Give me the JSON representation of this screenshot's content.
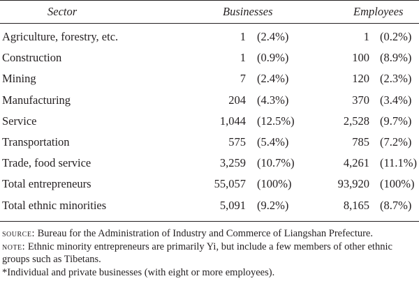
{
  "table": {
    "headers": {
      "sector": "Sector",
      "businesses": "Businesses",
      "employees": "Employees"
    },
    "rows": [
      {
        "sector": "Agriculture, forestry, etc.",
        "businesses": "1",
        "businesses_pct": "(2.4%)",
        "employees": "1",
        "employees_pct": "(0.2%)"
      },
      {
        "sector": "Construction",
        "businesses": "1",
        "businesses_pct": "(0.9%)",
        "employees": "100",
        "employees_pct": "(8.9%)"
      },
      {
        "sector": "Mining",
        "businesses": "7",
        "businesses_pct": "(2.4%)",
        "employees": "120",
        "employees_pct": "(2.3%)"
      },
      {
        "sector": "Manufacturing",
        "businesses": "204",
        "businesses_pct": "(4.3%)",
        "employees": "370",
        "employees_pct": "(3.4%)"
      },
      {
        "sector": "Service",
        "businesses": "1,044",
        "businesses_pct": "(12.5%)",
        "employees": "2,528",
        "employees_pct": "(9.7%)"
      },
      {
        "sector": "Transportation",
        "businesses": "575",
        "businesses_pct": "(5.4%)",
        "employees": "785",
        "employees_pct": "(7.2%)"
      },
      {
        "sector": "Trade, food service",
        "businesses": "3,259",
        "businesses_pct": "(10.7%)",
        "employees": "4,261",
        "employees_pct": "(11.1%)"
      },
      {
        "sector": "Total entrepreneurs",
        "businesses": "55,057",
        "businesses_pct": "(100%)",
        "employees": "93,920",
        "employees_pct": "(100%)"
      },
      {
        "sector": "Total ethnic minorities",
        "businesses": "5,091",
        "businesses_pct": "(9.2%)",
        "employees": "8,165",
        "employees_pct": "(8.7%)"
      }
    ]
  },
  "notes": {
    "source_label": "SOURCE:",
    "source_text": " Bureau for the Administration of Industry and Commerce of Liangshan Prefecture.",
    "note_label": "NOTE:",
    "note_text": " Ethnic minority entrepreneurs are primarily Yi, but include a few members of other ethnic groups such as Tibetans.",
    "footnote": "*Individual and private businesses (with eight or more employees)."
  }
}
